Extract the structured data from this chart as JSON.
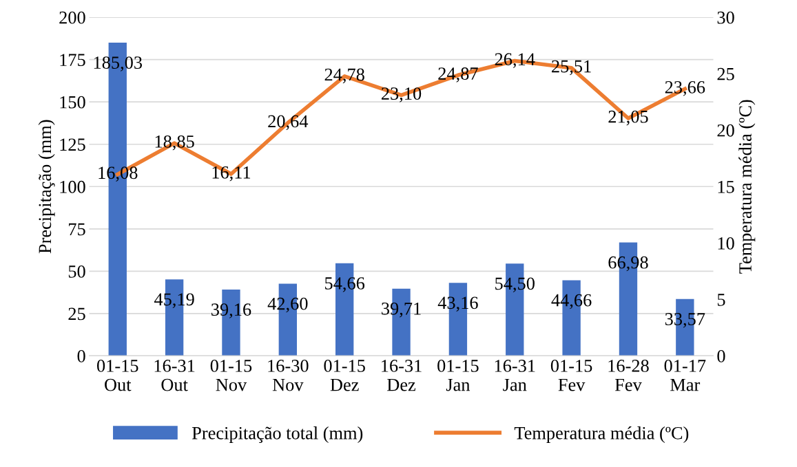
{
  "chart_data": {
    "type": "bar",
    "categories": [
      "01-15\nOut",
      "16-31\nOut",
      "01-15\nNov",
      "16-30\nNov",
      "01-15\nDez",
      "16-31\nDez",
      "01-15\nJan",
      "16-31\nJan",
      "01-15\nFev",
      "16-28\nFev",
      "01-17\nMar"
    ],
    "ylabel": "Precipitação (mm)",
    "y2label": "Temperatura média (ºC)",
    "ylim": [
      0,
      200
    ],
    "yticks": [
      0,
      25,
      50,
      75,
      100,
      125,
      150,
      175,
      200
    ],
    "y2lim": [
      0,
      30
    ],
    "y2ticks": [
      0,
      5,
      10,
      15,
      20,
      25,
      30
    ],
    "grid": "y",
    "legend": "bottom",
    "series": [
      {
        "name": "Precipitação total (mm)",
        "color": "#4472c4",
        "values": [
          185.03,
          45.19,
          39.16,
          42.6,
          54.66,
          39.71,
          43.16,
          54.5,
          44.66,
          66.98,
          33.57
        ],
        "value_labels": [
          "185,03",
          "45,19",
          "39,16",
          "42,60",
          "54,66",
          "39,71",
          "43,16",
          "54,50",
          "44,66",
          "66,98",
          "33,57"
        ]
      },
      {
        "name": "Temperatura média (ºC)",
        "type": "line",
        "axis": "y2",
        "color": "#ed7d31",
        "values": [
          16.08,
          18.85,
          16.11,
          20.64,
          24.78,
          23.1,
          24.87,
          26.14,
          25.51,
          21.05,
          23.66
        ],
        "value_labels": [
          "16,08",
          "18,85",
          "16,11",
          "20,64",
          "24,78",
          "23,10",
          "24,87",
          "26,14",
          "25,51",
          "21,05",
          "23,66"
        ]
      }
    ]
  }
}
